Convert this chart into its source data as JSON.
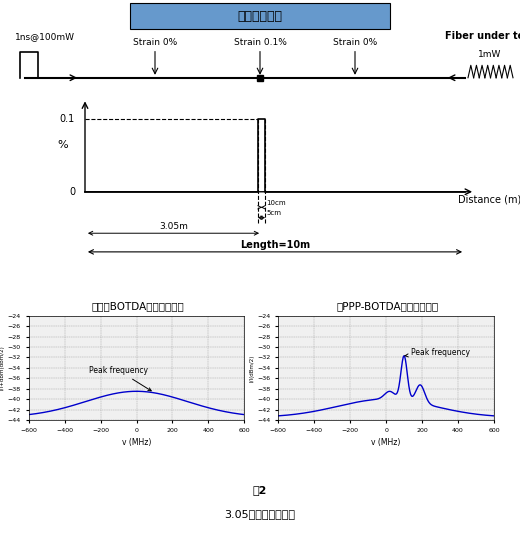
{
  "title_top_display": "＜测量条件＞",
  "pulse_label": "1ns@100mW",
  "fiber_label": "Fiber under test",
  "cw_label": "1mW",
  "strain_labels": [
    "Strain 0%",
    "Strain 0.1%",
    "Strain 0%"
  ],
  "y_axis_label": "%",
  "x_axis_label": "Distance (m)",
  "dim_10cm": "10cm",
  "dim_5cm": "5cm",
  "dim_305m": "3.05m",
  "dim_length": "Length=10m",
  "left_title1": "＜普通BOTDA的测量结果＞",
  "right_title1": "＜PPP-BOTDA的测量结果＞",
  "peak_label": "Peak frequency",
  "fig_label": "图2",
  "fig_caption": "3.05米处的测量结果",
  "bg_color": "#ffffff",
  "line_color": "#0000cc",
  "title_bg": "#6699cc",
  "ylabel_left": "I/I+dBm(dBm/2)",
  "ylabel_right": "I/I(dBm/2)",
  "xlabel_freq": "v (MHz)"
}
